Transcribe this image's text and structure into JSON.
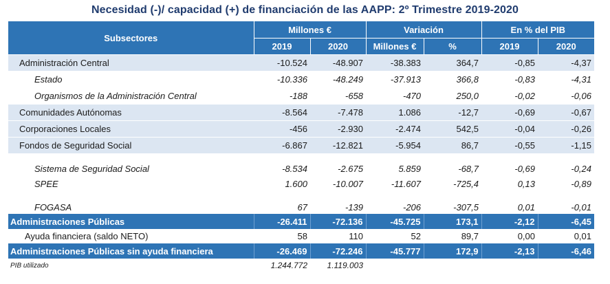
{
  "title": "Necesidad (-)/ capacidad (+) de financiación de las AAPP:  2º Trimestre 2019-2020",
  "header": {
    "subsectores": "Subsectores",
    "millones": "Millones €",
    "variacion": "Variación",
    "pib_pct": "En % del PIB",
    "y2019": "2019",
    "y2020": "2020",
    "var_millones": "Millones €",
    "var_pct": "%",
    "pib2019": "2019",
    "pib2020": "2020"
  },
  "rows": [
    {
      "label": "Administración Central",
      "v2019": "-10.524",
      "v2020": "-48.907",
      "var_m": "-38.383",
      "var_pct": "364,7",
      "pib2019": "-0,85",
      "pib2020": "-4,37"
    },
    {
      "label": "Estado",
      "v2019": "-10.336",
      "v2020": "-48.249",
      "var_m": "-37.913",
      "var_pct": "366,8",
      "pib2019": "-0,83",
      "pib2020": "-4,31"
    },
    {
      "label": "Organismos de la Administración Central",
      "v2019": "-188",
      "v2020": "-658",
      "var_m": "-470",
      "var_pct": "250,0",
      "pib2019": "-0,02",
      "pib2020": "-0,06"
    },
    {
      "label": "Comunidades Autónomas",
      "v2019": "-8.564",
      "v2020": "-7.478",
      "var_m": "1.086",
      "var_pct": "-12,7",
      "pib2019": "-0,69",
      "pib2020": "-0,67"
    },
    {
      "label": "Corporaciones Locales",
      "v2019": "-456",
      "v2020": "-2.930",
      "var_m": "-2.474",
      "var_pct": "542,5",
      "pib2019": "-0,04",
      "pib2020": "-0,26"
    },
    {
      "label": "Fondos de Seguridad Social",
      "v2019": "-6.867",
      "v2020": "-12.821",
      "var_m": "-5.954",
      "var_pct": "86,7",
      "pib2019": "-0,55",
      "pib2020": "-1,15"
    },
    {
      "label": "Sistema de Seguridad Social",
      "v2019": "-8.534",
      "v2020": "-2.675",
      "var_m": "5.859",
      "var_pct": "-68,7",
      "pib2019": "-0,69",
      "pib2020": "-0,24"
    },
    {
      "label": "SPEE",
      "v2019": "1.600",
      "v2020": "-10.007",
      "var_m": "-11.607",
      "var_pct": "-725,4",
      "pib2019": "0,13",
      "pib2020": "-0,89"
    },
    {
      "label": "FOGASA",
      "v2019": "67",
      "v2020": "-139",
      "var_m": "-206",
      "var_pct": "-307,5",
      "pib2019": "0,01",
      "pib2020": "-0,01"
    },
    {
      "label": "Administraciones Públicas",
      "v2019": "-26.411",
      "v2020": "-72.136",
      "var_m": "-45.725",
      "var_pct": "173,1",
      "pib2019": "-2,12",
      "pib2020": "-6,45"
    },
    {
      "label": "Ayuda financiera (saldo NETO)",
      "v2019": "58",
      "v2020": "110",
      "var_m": "52",
      "var_pct": "89,7",
      "pib2019": "0,00",
      "pib2020": "0,01"
    },
    {
      "label": "Administraciones Públicas sin  ayuda financiera",
      "v2019": "-26.469",
      "v2020": "-72.246",
      "var_m": "-45.777",
      "var_pct": "172,9",
      "pib2019": "-2,13",
      "pib2020": "-6,46"
    }
  ],
  "footer": {
    "label": "PIB utilizado",
    "v2019": "1.244.772",
    "v2020": "1.119.003"
  }
}
